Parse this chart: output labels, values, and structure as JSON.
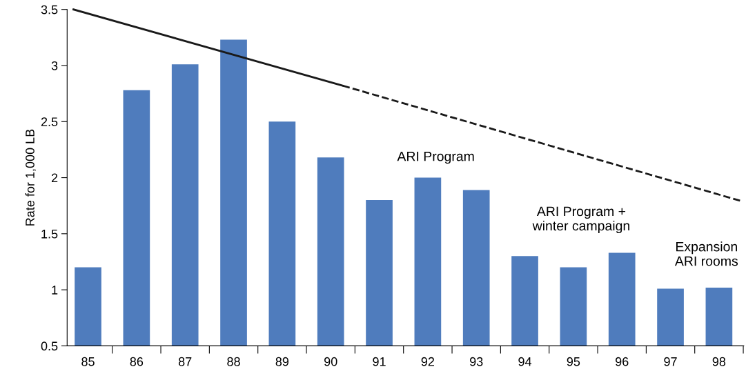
{
  "chart_data": {
    "type": "bar",
    "ylabel": "Rate for 1,000 LB",
    "x": [
      85,
      86,
      87,
      88,
      89,
      90,
      91,
      92,
      93,
      94,
      95,
      96,
      97,
      98
    ],
    "series": [
      {
        "color": "#4f7cbd",
        "values": [
          1.2,
          2.78,
          3.01,
          3.23,
          2.5,
          2.18,
          1.8,
          2.0,
          1.89,
          1.3,
          1.2,
          1.33,
          1.01,
          1.02
        ]
      },
      {
        "type": "line",
        "color": "#1a1a1a",
        "line_style": "solid",
        "x": [
          84.7,
          90.25
        ],
        "values": [
          3.5,
          2.82
        ]
      },
      {
        "type": "line",
        "color": "#1a1a1a",
        "line_style": "dashed",
        "x": [
          90.25,
          98.47
        ],
        "values": [
          2.82,
          1.79
        ]
      }
    ],
    "xlim": [
      84.57,
      98.51
    ],
    "xticks": [
      {
        "value": 85,
        "label": "85"
      },
      {
        "value": 85.5,
        "label": null
      },
      {
        "value": 86,
        "label": "86"
      },
      {
        "value": 86.5,
        "label": null
      },
      {
        "value": 87,
        "label": "87"
      },
      {
        "value": 87.5,
        "label": null
      },
      {
        "value": 88,
        "label": "88"
      },
      {
        "value": 88.5,
        "label": null
      },
      {
        "value": 89,
        "label": "89"
      },
      {
        "value": 89.5,
        "label": null
      },
      {
        "value": 90,
        "label": "90"
      },
      {
        "value": 90.5,
        "label": null
      },
      {
        "value": 91,
        "label": "91"
      },
      {
        "value": 91.5,
        "label": null
      },
      {
        "value": 92,
        "label": "92"
      },
      {
        "value": 92.5,
        "label": null
      },
      {
        "value": 93,
        "label": "93"
      },
      {
        "value": 93.5,
        "label": null
      },
      {
        "value": 94,
        "label": "94"
      },
      {
        "value": 94.5,
        "label": null
      },
      {
        "value": 95,
        "label": "95"
      },
      {
        "value": 95.5,
        "label": null
      },
      {
        "value": 96,
        "label": "96"
      },
      {
        "value": 96.5,
        "label": null
      },
      {
        "value": 97,
        "label": "97"
      },
      {
        "value": 97.5,
        "label": null
      },
      {
        "value": 98,
        "label": "98"
      },
      {
        "value": 98.5,
        "label": null
      }
    ],
    "ylim": [
      0.5,
      3.5
    ],
    "yticks": [
      0.5,
      1,
      1.5,
      2,
      2.5,
      3,
      3.5
    ],
    "grid": false,
    "annotations": [
      "ARI Program",
      "ARI Program +\nwinter campaign",
      "Expansion\nARI rooms"
    ]
  }
}
